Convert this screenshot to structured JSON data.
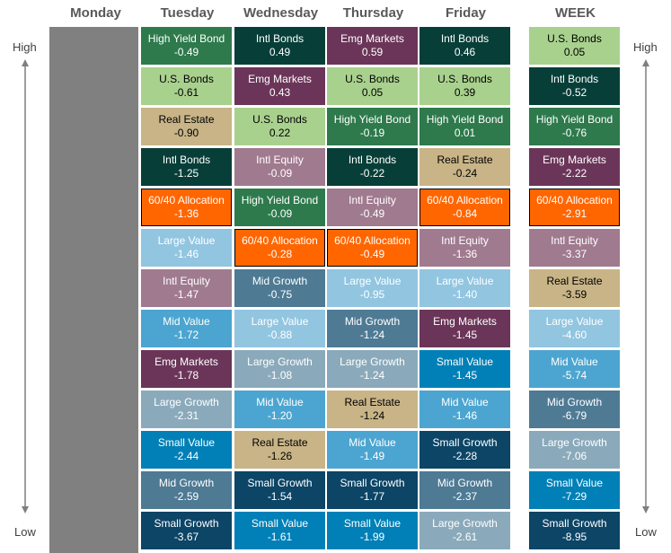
{
  "headers": [
    "Monday",
    "Tuesday",
    "Wednesday",
    "Thursday",
    "Friday",
    "WEEK"
  ],
  "axis": {
    "high": "High",
    "low": "Low"
  },
  "colors": {
    "Intl Bonds": "#073f38",
    "U.S. Bonds": "#a9d18e",
    "High Yield Bond": "#2e7a4c",
    "Emg Markets": "#6b3559",
    "Real Estate": "#c8b487",
    "Intl Equity": "#a07a8f",
    "60/40 Allocation": "#ff6600",
    "Large Value": "#92c5e0",
    "Mid Growth": "#4e7a94",
    "Large Growth": "#8aaabb",
    "Mid Value": "#4ca5d0",
    "Small Value": "#0080b7",
    "Small Growth": "#0c4566",
    "monday_fill": "#808080"
  },
  "columns": [
    {
      "day": "Tuesday",
      "cells": [
        {
          "name": "High Yield Bond",
          "value": "-0.49"
        },
        {
          "name": "U.S. Bonds",
          "value": "-0.61"
        },
        {
          "name": "Real Estate",
          "value": "-0.90"
        },
        {
          "name": "Intl Bonds",
          "value": "-1.25"
        },
        {
          "name": "60/40 Allocation",
          "value": "-1.36"
        },
        {
          "name": "Large Value",
          "value": "-1.46"
        },
        {
          "name": "Intl Equity",
          "value": "-1.47"
        },
        {
          "name": "Mid Value",
          "value": "-1.72"
        },
        {
          "name": "Emg Markets",
          "value": "-1.78"
        },
        {
          "name": "Large Growth",
          "value": "-2.31"
        },
        {
          "name": "Small Value",
          "value": "-2.44"
        },
        {
          "name": "Mid Growth",
          "value": "-2.59"
        },
        {
          "name": "Small Growth",
          "value": "-3.67"
        }
      ]
    },
    {
      "day": "Wednesday",
      "cells": [
        {
          "name": "Intl Bonds",
          "value": "0.49"
        },
        {
          "name": "Emg Markets",
          "value": "0.43"
        },
        {
          "name": "U.S. Bonds",
          "value": "0.22"
        },
        {
          "name": "Intl Equity",
          "value": "-0.09"
        },
        {
          "name": "High Yield Bond",
          "value": "-0.09"
        },
        {
          "name": "60/40 Allocation",
          "value": "-0.28"
        },
        {
          "name": "Mid Growth",
          "value": "-0.75"
        },
        {
          "name": "Large Value",
          "value": "-0.88"
        },
        {
          "name": "Large Growth",
          "value": "-1.08"
        },
        {
          "name": "Mid Value",
          "value": "-1.20"
        },
        {
          "name": "Real Estate",
          "value": "-1.26"
        },
        {
          "name": "Small Growth",
          "value": "-1.54"
        },
        {
          "name": "Small Value",
          "value": "-1.61"
        }
      ]
    },
    {
      "day": "Thursday",
      "cells": [
        {
          "name": "Emg Markets",
          "value": "0.59"
        },
        {
          "name": "U.S. Bonds",
          "value": "0.05"
        },
        {
          "name": "High Yield Bond",
          "value": "-0.19"
        },
        {
          "name": "Intl Bonds",
          "value": "-0.22"
        },
        {
          "name": "Intl Equity",
          "value": "-0.49"
        },
        {
          "name": "60/40 Allocation",
          "value": "-0.49"
        },
        {
          "name": "Large Value",
          "value": "-0.95"
        },
        {
          "name": "Mid Growth",
          "value": "-1.24"
        },
        {
          "name": "Large Growth",
          "value": "-1.24"
        },
        {
          "name": "Real Estate",
          "value": "-1.24"
        },
        {
          "name": "Mid Value",
          "value": "-1.49"
        },
        {
          "name": "Small Growth",
          "value": "-1.77"
        },
        {
          "name": "Small Value",
          "value": "-1.99"
        }
      ]
    },
    {
      "day": "Friday",
      "cells": [
        {
          "name": "Intl Bonds",
          "value": "0.46"
        },
        {
          "name": "U.S. Bonds",
          "value": "0.39"
        },
        {
          "name": "High Yield Bond",
          "value": "0.01"
        },
        {
          "name": "Real Estate",
          "value": "-0.24"
        },
        {
          "name": "60/40 Allocation",
          "value": "-0.84"
        },
        {
          "name": "Intl Equity",
          "value": "-1.36"
        },
        {
          "name": "Large Value",
          "value": "-1.40"
        },
        {
          "name": "Emg Markets",
          "value": "-1.45"
        },
        {
          "name": "Small Value",
          "value": "-1.45"
        },
        {
          "name": "Mid Value",
          "value": "-1.46"
        },
        {
          "name": "Small Growth",
          "value": "-2.28"
        },
        {
          "name": "Mid Growth",
          "value": "-2.37"
        },
        {
          "name": "Large Growth",
          "value": "-2.61"
        }
      ]
    },
    {
      "day": "WEEK",
      "cells": [
        {
          "name": "U.S. Bonds",
          "value": "0.05"
        },
        {
          "name": "Intl Bonds",
          "value": "-0.52"
        },
        {
          "name": "High Yield Bond",
          "value": "-0.76"
        },
        {
          "name": "Emg Markets",
          "value": "-2.22"
        },
        {
          "name": "60/40 Allocation",
          "value": "-2.91"
        },
        {
          "name": "Intl Equity",
          "value": "-3.37"
        },
        {
          "name": "Real Estate",
          "value": "-3.59"
        },
        {
          "name": "Large Value",
          "value": "-4.60"
        },
        {
          "name": "Mid Value",
          "value": "-5.74"
        },
        {
          "name": "Mid Growth",
          "value": "-6.79"
        },
        {
          "name": "Large Growth",
          "value": "-7.06"
        },
        {
          "name": "Small Value",
          "value": "-7.29"
        },
        {
          "name": "Small Growth",
          "value": "-8.95"
        }
      ]
    }
  ]
}
